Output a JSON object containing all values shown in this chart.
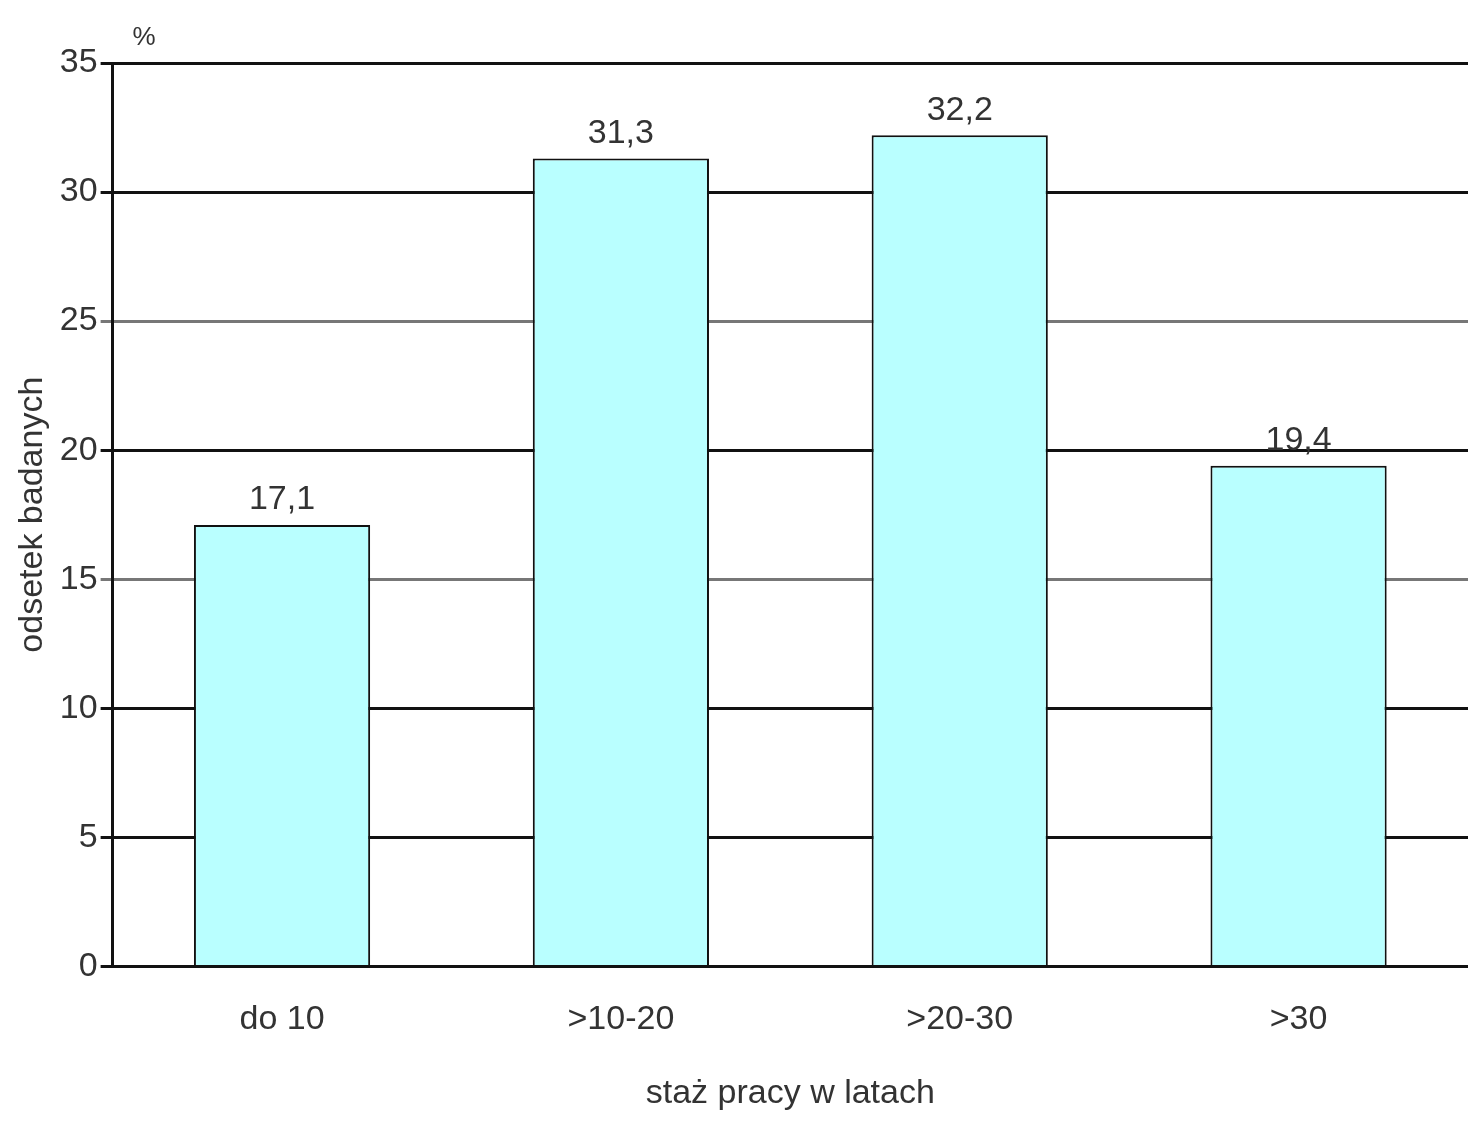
{
  "chart_data": {
    "type": "bar",
    "categories": [
      "do 10",
      ">10-20",
      ">20-30",
      ">30"
    ],
    "values": [
      17.1,
      31.3,
      32.2,
      19.4
    ],
    "value_labels": [
      "17,1",
      "31,3",
      "32,2",
      "19,4"
    ],
    "color": "#b9ffff",
    "xlabel": "staż pracy w latach",
    "ylabel": "odsetek badanych",
    "annotations": [
      "%"
    ],
    "ylim": [
      0,
      35
    ],
    "yticks": [
      0,
      5,
      10,
      15,
      20,
      25,
      30,
      35
    ],
    "grid": "y",
    "legend": false
  }
}
